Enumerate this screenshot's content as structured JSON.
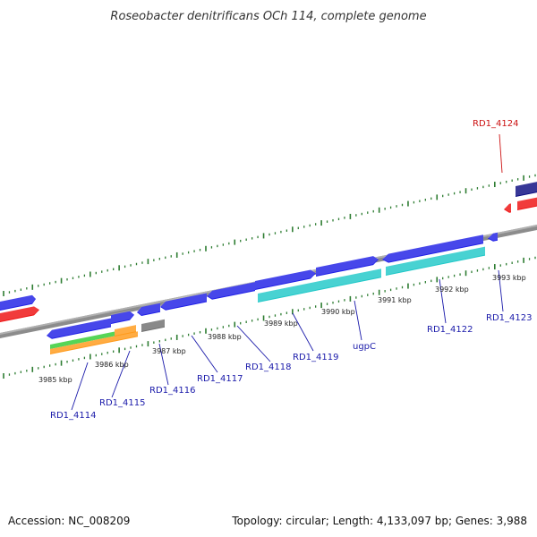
{
  "title": "Roseobacter denitrificans OCh 114, complete genome",
  "footer": {
    "accession": "Accession: NC_008209",
    "topology": "Topology: circular; Length: 4,133,097 bp; Genes: 3,988"
  },
  "colors": {
    "backbone": "#8c8c8c",
    "ticks": "#2e7d32",
    "label_blue": "#1a1aaa",
    "label_red": "#cc1111",
    "gene_blue": "#1f1fe6",
    "gene_navy": "#0c0c80",
    "gene_red": "#ee1111",
    "gene_cyan": "#20c8c8",
    "gene_orange": "#ff9a1a",
    "gene_green": "#33cc33",
    "gene_gray": "#707070"
  },
  "kbp_markers": [
    {
      "label": "3985 kbp"
    },
    {
      "label": "3986 kbp"
    },
    {
      "label": "3987 kbp"
    },
    {
      "label": "3988 kbp"
    },
    {
      "label": "3989 kbp"
    },
    {
      "label": "3990 kbp"
    },
    {
      "label": "3991 kbp"
    },
    {
      "label": "3992 kbp"
    },
    {
      "label": "3993 kbp"
    }
  ],
  "gene_labels": [
    {
      "text": "RD1_4114",
      "color": "blue"
    },
    {
      "text": "RD1_4115",
      "color": "blue"
    },
    {
      "text": "RD1_4116",
      "color": "blue"
    },
    {
      "text": "RD1_4117",
      "color": "blue"
    },
    {
      "text": "RD1_4118",
      "color": "blue"
    },
    {
      "text": "RD1_4119",
      "color": "blue"
    },
    {
      "text": "ugpC",
      "color": "blue"
    },
    {
      "text": "RD1_4122",
      "color": "blue"
    },
    {
      "text": "RD1_4123",
      "color": "blue"
    },
    {
      "text": "RD1_4124",
      "color": "red"
    }
  ]
}
